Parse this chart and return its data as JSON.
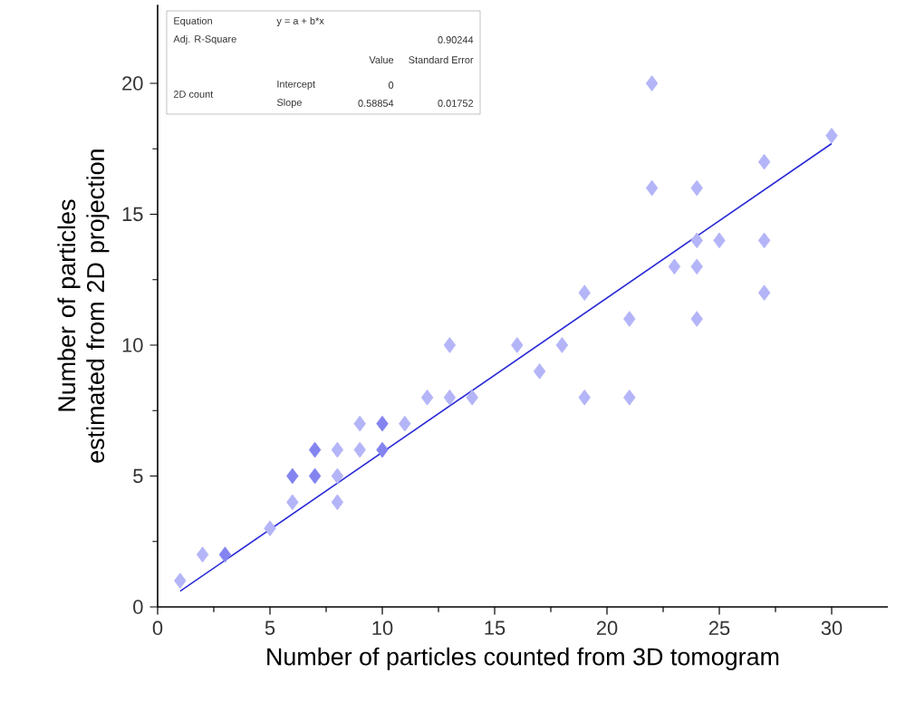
{
  "chart_data": {
    "type": "scatter",
    "xlabel": "Number of particles counted from 3D tomogram",
    "ylabel": "Number of particles estimated from 2D projection",
    "xlim": [
      0,
      32.5
    ],
    "ylim": [
      0,
      23
    ],
    "xticks": [
      0,
      5,
      10,
      15,
      20,
      25,
      30
    ],
    "yticks": [
      0,
      5,
      10,
      15,
      20
    ],
    "grid": false,
    "annotations": [
      "Equation",
      "y = a + b*x",
      "Adj. R-Square",
      "0.90244",
      "Value",
      "Standard Error",
      "2D count",
      "Intercept",
      "0",
      "Slope",
      "0.58854",
      "0.01752"
    ],
    "series": [
      {
        "marker": "diamond",
        "color": "#b4b4f8",
        "x": [
          1,
          2,
          3,
          5,
          6,
          6,
          7,
          7,
          8,
          8,
          8,
          9,
          9,
          10,
          10,
          11,
          12,
          13,
          13,
          14,
          16,
          17,
          18,
          19,
          19,
          21,
          21,
          22,
          22,
          23,
          24,
          24,
          24,
          24,
          25,
          27,
          27,
          27,
          30
        ],
        "values": [
          1,
          2,
          2,
          3,
          4,
          5,
          5,
          6,
          4,
          5,
          6,
          6,
          7,
          6,
          7,
          7,
          8,
          8,
          10,
          8,
          10,
          9,
          10,
          8,
          12,
          8,
          11,
          16,
          20,
          13,
          16,
          14,
          13,
          11,
          14,
          17,
          14,
          12,
          18
        ],
        "colors": [
          "#b4b4f8",
          "#b4b4f8",
          "#8484f0",
          "#b4b4f8",
          "#b4b4f8",
          "#8484f0",
          "#8484f0",
          "#8484f0",
          "#b4b4f8",
          "#b4b4f8",
          "#b4b4f8",
          "#b4b4f8",
          "#b4b4f8",
          "#8484f0",
          "#8484f0",
          "#b4b4f8",
          "#b4b4f8",
          "#b4b4f8",
          "#b4b4f8",
          "#b4b4f8",
          "#b4b4f8",
          "#b4b4f8",
          "#b4b4f8",
          "#b4b4f8",
          "#b4b4f8",
          "#b4b4f8",
          "#b4b4f8",
          "#b4b4f8",
          "#b4b4f8",
          "#b4b4f8",
          "#b4b4f8",
          "#b4b4f8",
          "#b4b4f8",
          "#b4b4f8",
          "#b4b4f8",
          "#b4b4f8",
          "#b4b4f8",
          "#b4b4f8",
          "#b4b4f8"
        ]
      },
      {
        "type": "line",
        "color": "#2a2ad6",
        "x": [
          1,
          30
        ],
        "values": [
          0.6,
          17.7
        ],
        "line_style": "solid"
      }
    ]
  }
}
